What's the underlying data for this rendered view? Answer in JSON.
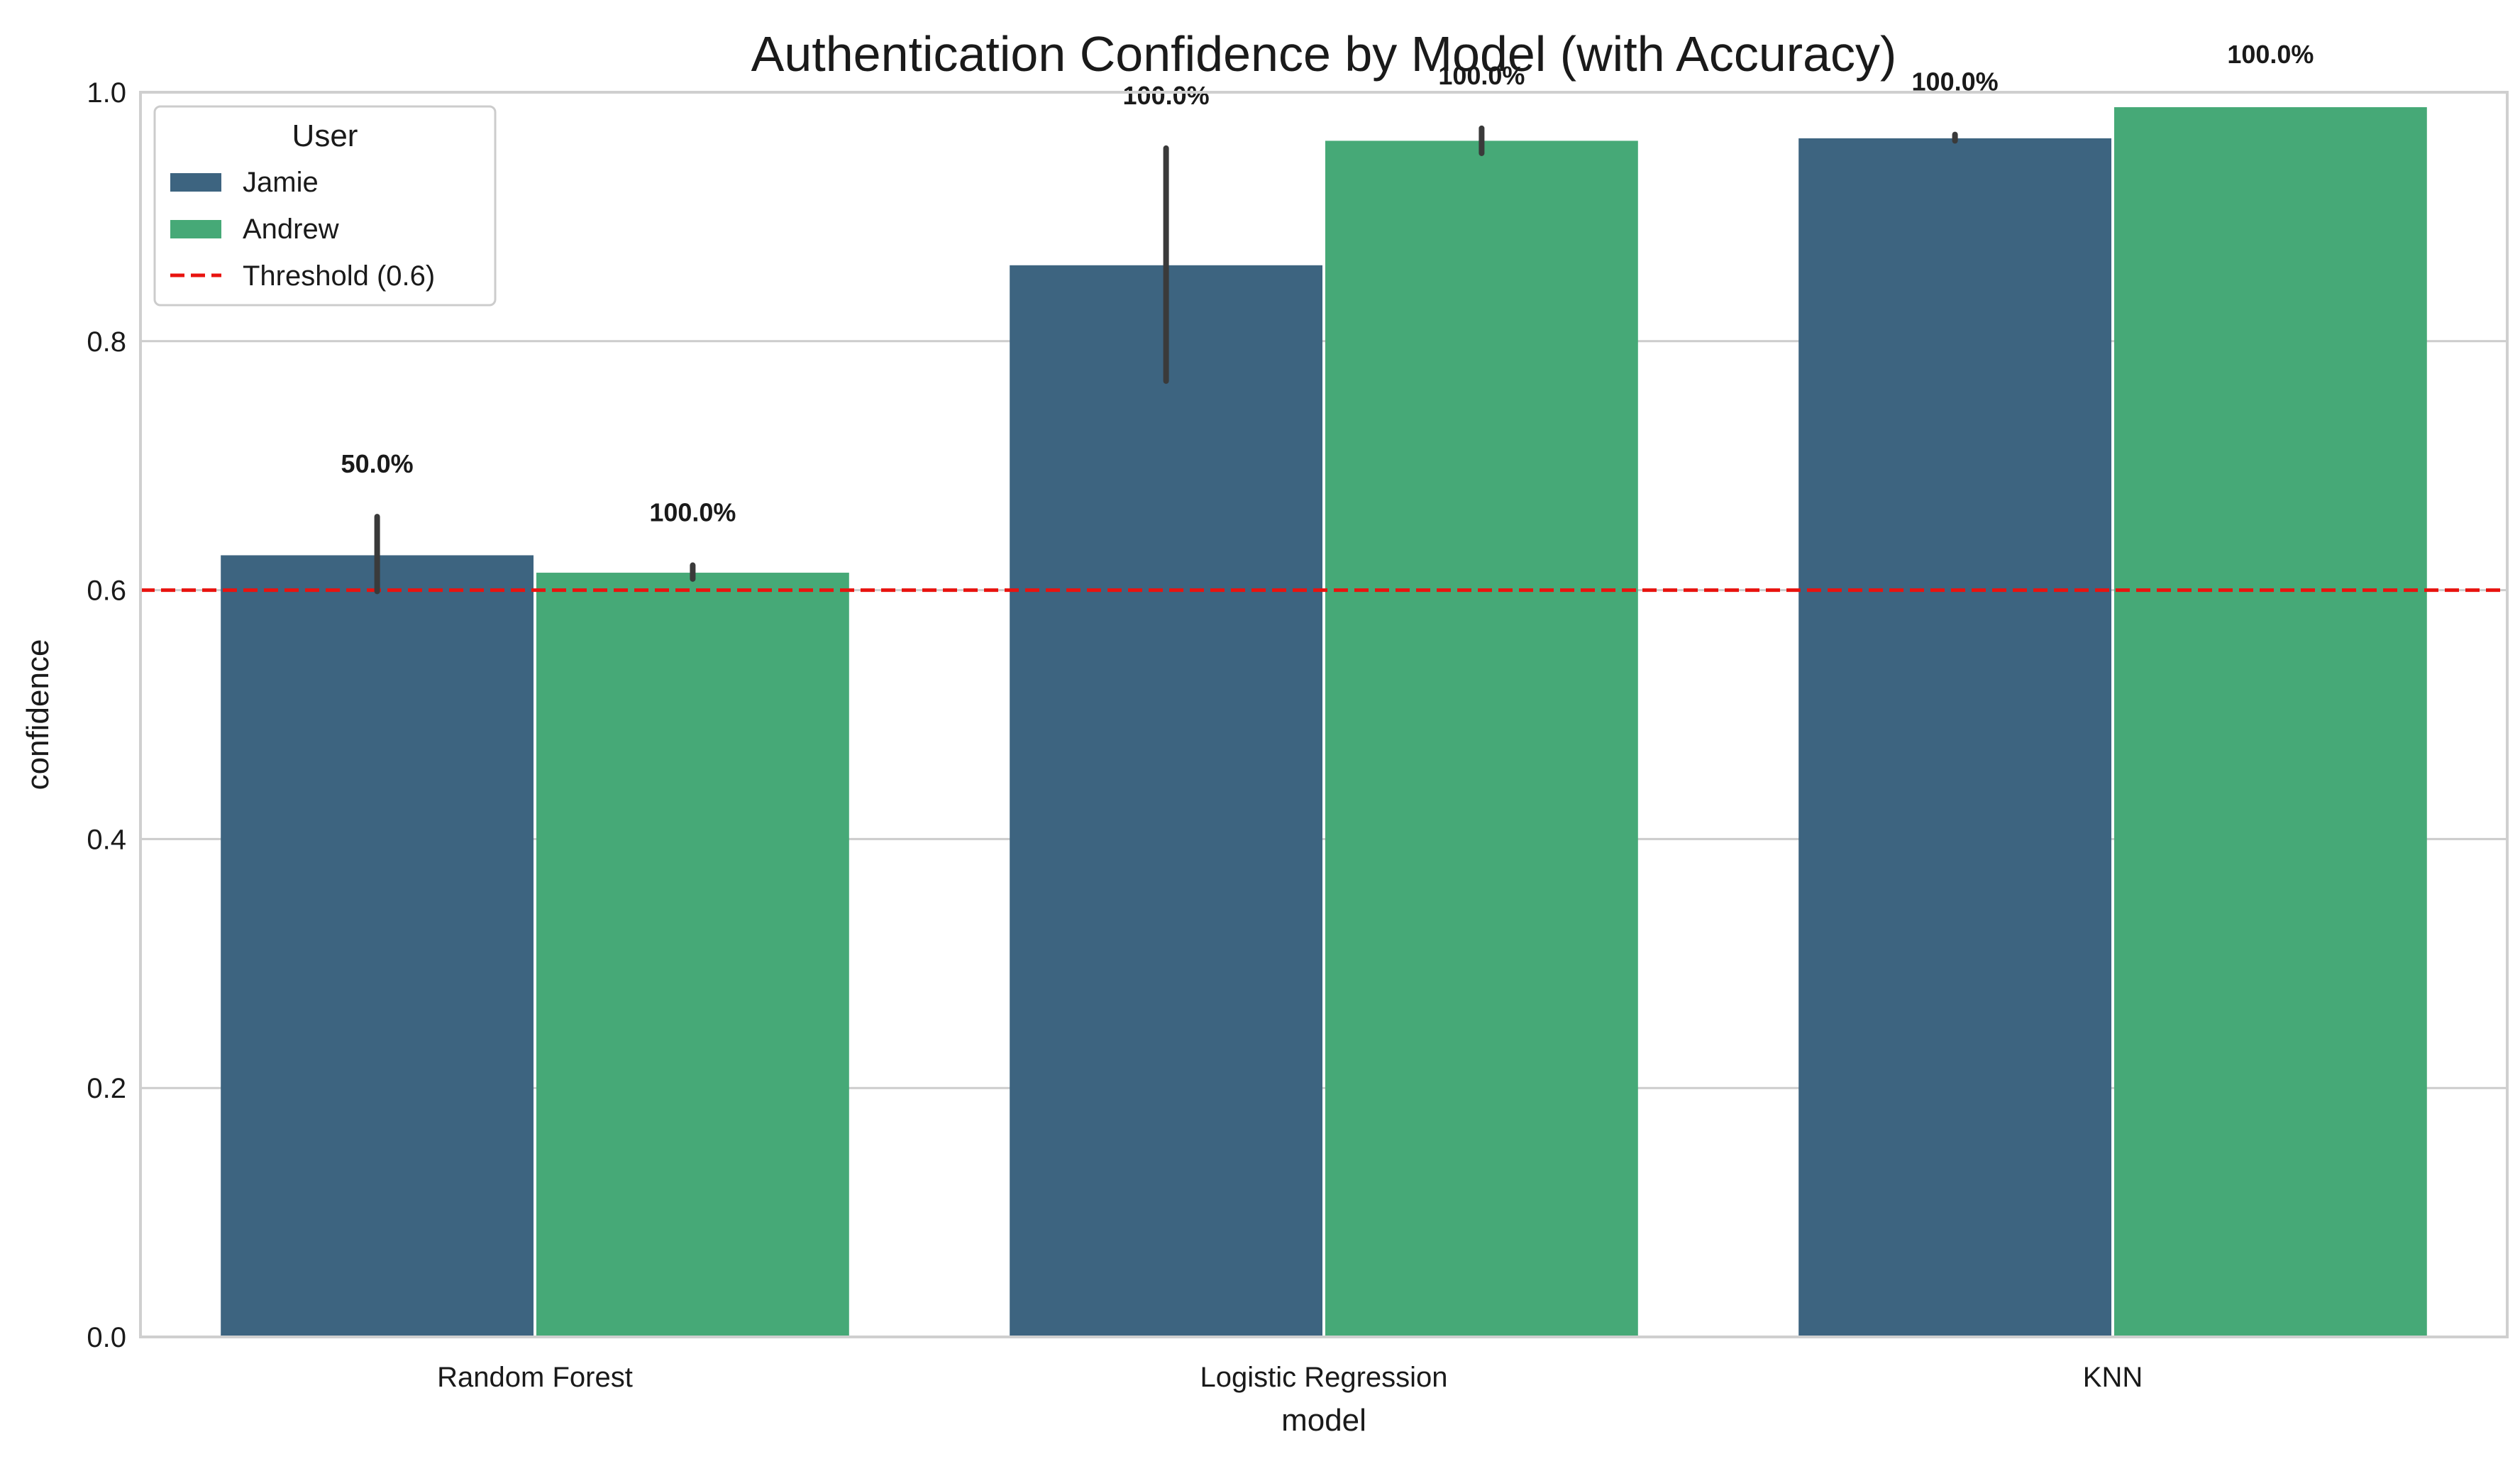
{
  "chart_data": {
    "type": "bar",
    "title": "Authentication Confidence by Model (with Accuracy)",
    "xlabel": "model",
    "ylabel": "confidence",
    "ylim": [
      0,
      1.0
    ],
    "yticks": [
      "0.0",
      "0.2",
      "0.4",
      "0.6",
      "0.8",
      "1.0"
    ],
    "grid": "horizontal",
    "categories": [
      "Random Forest",
      "Logistic Regression",
      "KNN"
    ],
    "series": [
      {
        "name": "Jamie",
        "color": "#3d6480",
        "values": [
          0.628,
          0.861,
          0.963
        ],
        "error_low": [
          0.599,
          0.768,
          0.961
        ],
        "error_high": [
          0.659,
          0.955,
          0.966
        ],
        "accuracy_labels": [
          "50.0%",
          "100.0%",
          "100.0%"
        ]
      },
      {
        "name": "Andrew",
        "color": "#46a977",
        "values": [
          0.614,
          0.961,
          0.988
        ],
        "error_low": [
          0.609,
          0.951,
          0.988
        ],
        "error_high": [
          0.62,
          0.971,
          0.988
        ],
        "accuracy_labels": [
          "100.0%",
          "100.0%",
          "100.0%"
        ]
      }
    ],
    "reference_line": {
      "value": 0.6,
      "label": "Threshold (0.6)",
      "color": "#e8130f",
      "style": "dashed"
    },
    "legend": {
      "title": "User",
      "placement": "top-left"
    }
  }
}
